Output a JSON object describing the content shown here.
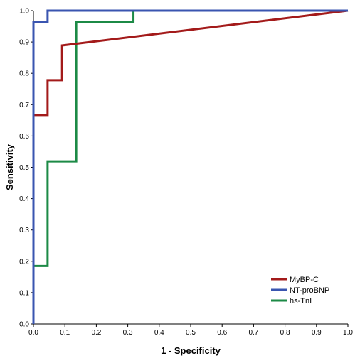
{
  "chart_data": {
    "type": "line",
    "title": "",
    "xlabel": "1 - Specificity",
    "ylabel": "Sensitivity",
    "xlim": [
      0.0,
      1.0
    ],
    "ylim": [
      0.0,
      1.0
    ],
    "xticks": [
      "0.0",
      "0.1",
      "0.2",
      "0.3",
      "0.4",
      "0.5",
      "0.6",
      "0.7",
      "0.8",
      "0.9",
      "1.0"
    ],
    "yticks": [
      "0.0",
      "0.1",
      "0.2",
      "0.3",
      "0.4",
      "0.5",
      "0.6",
      "0.7",
      "0.8",
      "0.9",
      "1.0"
    ],
    "grid": false,
    "legend_position": "bottom-right",
    "series": [
      {
        "name": "MyBP-C",
        "color": "#a31a1a",
        "points": [
          [
            0,
            0
          ],
          [
            0,
            0.667
          ],
          [
            0.045,
            0.667
          ],
          [
            0.045,
            0.778
          ],
          [
            0.091,
            0.778
          ],
          [
            0.091,
            0.889
          ],
          [
            1.0,
            1.0
          ]
        ]
      },
      {
        "name": "NT-proBNP",
        "color": "#3a55b0",
        "points": [
          [
            0,
            0
          ],
          [
            0,
            0.963
          ],
          [
            0.045,
            0.963
          ],
          [
            0.045,
            1.0
          ],
          [
            1.0,
            1.0
          ]
        ]
      },
      {
        "name": "hs-TnI",
        "color": "#1c8a46",
        "points": [
          [
            0,
            0
          ],
          [
            0,
            0.185
          ],
          [
            0.045,
            0.185
          ],
          [
            0.045,
            0.519
          ],
          [
            0.136,
            0.519
          ],
          [
            0.136,
            0.963
          ],
          [
            0.318,
            0.963
          ],
          [
            0.318,
            1.0
          ],
          [
            1.0,
            1.0
          ]
        ]
      }
    ]
  }
}
